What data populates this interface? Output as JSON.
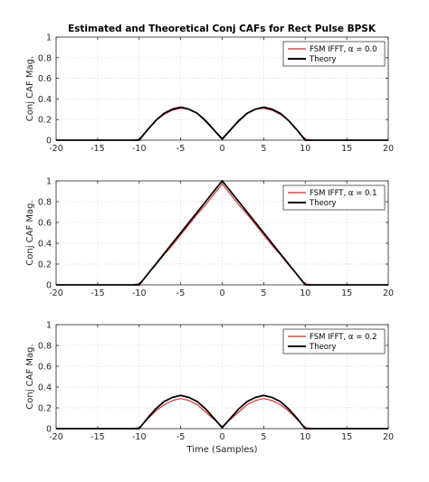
{
  "figure_title": "Estimated and Theoretical Conj CAFs for Rect Pulse BPSK",
  "chart_data": [
    {
      "type": "line",
      "ylabel": "Conj CAF Mag.",
      "xlabel": "",
      "xlim": [
        -20,
        20
      ],
      "ylim": [
        0,
        1
      ],
      "xticks": [
        "-20",
        "-15",
        "-10",
        "-5",
        "0",
        "5",
        "10",
        "15",
        "20"
      ],
      "yticks": [
        "0",
        "0.2",
        "0.4",
        "0.6",
        "0.8",
        "1"
      ],
      "grid": true,
      "legend_position": "top-right",
      "x": [
        -20,
        -19,
        -18,
        -17,
        -16,
        -15,
        -14,
        -13,
        -12,
        -11,
        -10,
        -9,
        -8,
        -7,
        -6,
        -5,
        -4,
        -3,
        -2,
        -1,
        0,
        1,
        2,
        3,
        4,
        5,
        6,
        7,
        8,
        9,
        10,
        11,
        12,
        13,
        14,
        15,
        16,
        17,
        18,
        19,
        20
      ],
      "series": [
        {
          "name": "FSM IFFT, α = 0.0",
          "color": "#d62728",
          "values": [
            0,
            0,
            0,
            0,
            0,
            0,
            0,
            0,
            0,
            0,
            0.01,
            0.1,
            0.19,
            0.25,
            0.29,
            0.31,
            0.3,
            0.26,
            0.18,
            0.1,
            0.02,
            0.1,
            0.18,
            0.26,
            0.3,
            0.31,
            0.29,
            0.25,
            0.19,
            0.1,
            0.01,
            0,
            0,
            0,
            0,
            0,
            0,
            0,
            0,
            0,
            0
          ]
        },
        {
          "name": "Theory",
          "color": "#000000",
          "values": [
            0,
            0,
            0,
            0,
            0,
            0,
            0,
            0,
            0,
            0,
            0,
            0.1,
            0.19,
            0.26,
            0.3,
            0.32,
            0.3,
            0.26,
            0.19,
            0.1,
            0.01,
            0.1,
            0.19,
            0.26,
            0.3,
            0.32,
            0.3,
            0.26,
            0.19,
            0.1,
            0,
            0,
            0,
            0,
            0,
            0,
            0,
            0,
            0,
            0,
            0
          ]
        }
      ]
    },
    {
      "type": "line",
      "ylabel": "Conj CAF Mag.",
      "xlabel": "",
      "xlim": [
        -20,
        20
      ],
      "ylim": [
        0,
        1
      ],
      "xticks": [
        "-20",
        "-15",
        "-10",
        "-5",
        "0",
        "5",
        "10",
        "15",
        "20"
      ],
      "yticks": [
        "0",
        "0.2",
        "0.4",
        "0.6",
        "0.8",
        "1"
      ],
      "grid": true,
      "legend_position": "top-right",
      "x": [
        -20,
        -19,
        -18,
        -17,
        -16,
        -15,
        -14,
        -13,
        -12,
        -11,
        -10,
        -9,
        -8,
        -7,
        -6,
        -5,
        -4,
        -3,
        -2,
        -1,
        0,
        1,
        2,
        3,
        4,
        5,
        6,
        7,
        8,
        9,
        10,
        11,
        12,
        13,
        14,
        15,
        16,
        17,
        18,
        19,
        20
      ],
      "series": [
        {
          "name": "FSM IFFT, α = 0.1",
          "color": "#d62728",
          "values": [
            0,
            0,
            0,
            0,
            0,
            0,
            0,
            0,
            0,
            0,
            0.01,
            0.1,
            0.19,
            0.29,
            0.38,
            0.48,
            0.58,
            0.68,
            0.77,
            0.87,
            0.97,
            0.87,
            0.77,
            0.68,
            0.58,
            0.48,
            0.38,
            0.29,
            0.19,
            0.1,
            0.01,
            0,
            0,
            0,
            0,
            0,
            0,
            0,
            0,
            0,
            0
          ]
        },
        {
          "name": "Theory",
          "color": "#000000",
          "values": [
            0,
            0,
            0,
            0,
            0,
            0,
            0,
            0,
            0,
            0,
            0,
            0.1,
            0.2,
            0.3,
            0.4,
            0.5,
            0.6,
            0.7,
            0.8,
            0.9,
            1.0,
            0.9,
            0.8,
            0.7,
            0.6,
            0.5,
            0.4,
            0.3,
            0.2,
            0.1,
            0,
            0,
            0,
            0,
            0,
            0,
            0,
            0,
            0,
            0,
            0
          ]
        }
      ]
    },
    {
      "type": "line",
      "ylabel": "Conj CAF Mag.",
      "xlabel": "Time (Samples)",
      "xlim": [
        -20,
        20
      ],
      "ylim": [
        0,
        1
      ],
      "xticks": [
        "-20",
        "-15",
        "-10",
        "-5",
        "0",
        "5",
        "10",
        "15",
        "20"
      ],
      "yticks": [
        "0",
        "0.2",
        "0.4",
        "0.6",
        "0.8",
        "1"
      ],
      "grid": true,
      "legend_position": "top-right",
      "x": [
        -20,
        -19,
        -18,
        -17,
        -16,
        -15,
        -14,
        -13,
        -12,
        -11,
        -10,
        -9,
        -8,
        -7,
        -6,
        -5,
        -4,
        -3,
        -2,
        -1,
        0,
        1,
        2,
        3,
        4,
        5,
        6,
        7,
        8,
        9,
        10,
        11,
        12,
        13,
        14,
        15,
        16,
        17,
        18,
        19,
        20
      ],
      "series": [
        {
          "name": "FSM IFFT, α = 0.2",
          "color": "#d62728",
          "values": [
            0,
            0,
            0,
            0,
            0,
            0,
            0,
            0,
            0,
            0,
            0.01,
            0.09,
            0.17,
            0.23,
            0.27,
            0.29,
            0.27,
            0.23,
            0.16,
            0.09,
            0.02,
            0.09,
            0.16,
            0.23,
            0.27,
            0.29,
            0.27,
            0.23,
            0.17,
            0.09,
            0.01,
            0,
            0,
            0,
            0,
            0,
            0,
            0,
            0,
            0,
            0
          ]
        },
        {
          "name": "Theory",
          "color": "#000000",
          "values": [
            0,
            0,
            0,
            0,
            0,
            0,
            0,
            0,
            0,
            0,
            0,
            0.1,
            0.19,
            0.26,
            0.3,
            0.32,
            0.3,
            0.26,
            0.19,
            0.1,
            0.01,
            0.1,
            0.19,
            0.26,
            0.3,
            0.32,
            0.3,
            0.26,
            0.19,
            0.1,
            0,
            0,
            0,
            0,
            0,
            0,
            0,
            0,
            0,
            0,
            0
          ]
        }
      ]
    }
  ]
}
